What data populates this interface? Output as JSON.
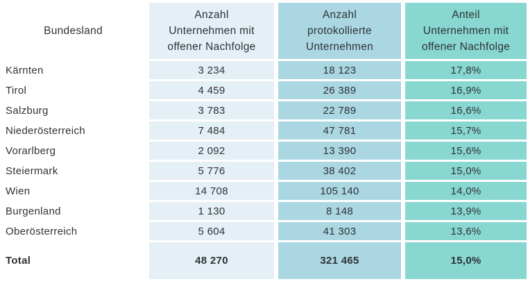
{
  "colors": {
    "light_blue": "#e4eff6",
    "medium_blue": "#abd7e3",
    "teal": "#88d7d0",
    "text": "#2e3236"
  },
  "table": {
    "header": {
      "col0": "Bundesland",
      "col1": {
        "lines": [
          "Anzahl",
          "Unternehmen mit",
          "offener Nachfolge"
        ]
      },
      "col2": {
        "lines": [
          "Anzahl",
          "protokollierte",
          "Unternehmen"
        ]
      },
      "col3": {
        "lines": [
          "Anteil",
          "Unternehmen mit",
          "offener Nachfolge"
        ]
      }
    },
    "rows": [
      {
        "bundesland": "Kärnten",
        "offene_nachfolge": "3 234",
        "protokollierte": "18 123",
        "anteil": "17,8%"
      },
      {
        "bundesland": "Tirol",
        "offene_nachfolge": "4 459",
        "protokollierte": "26 389",
        "anteil": "16,9%"
      },
      {
        "bundesland": "Salzburg",
        "offene_nachfolge": "3 783",
        "protokollierte": "22 789",
        "anteil": "16,6%"
      },
      {
        "bundesland": "Niederösterreich",
        "offene_nachfolge": "7 484",
        "protokollierte": "47 781",
        "anteil": "15,7%"
      },
      {
        "bundesland": "Vorarlberg",
        "offene_nachfolge": "2 092",
        "protokollierte": "13 390",
        "anteil": "15,6%"
      },
      {
        "bundesland": "Steiermark",
        "offene_nachfolge": "5 776",
        "protokollierte": "38 402",
        "anteil": "15,0%"
      },
      {
        "bundesland": "Wien",
        "offene_nachfolge": "14 708",
        "protokollierte": "105 140",
        "anteil": "14,0%"
      },
      {
        "bundesland": "Burgenland",
        "offene_nachfolge": "1 130",
        "protokollierte": "8 148",
        "anteil": "13,9%"
      },
      {
        "bundesland": "Oberösterreich",
        "offene_nachfolge": "5 604",
        "protokollierte": "41 303",
        "anteil": "13,6%"
      }
    ],
    "total": {
      "label": "Total",
      "offene_nachfolge": "48 270",
      "protokollierte": "321 465",
      "anteil": "15,0%"
    }
  },
  "chart_data": {
    "type": "table",
    "title": "",
    "columns": [
      "Bundesland",
      "Anzahl Unternehmen mit offener Nachfolge",
      "Anzahl protokollierte Unternehmen",
      "Anteil Unternehmen mit offener Nachfolge"
    ],
    "rows": [
      [
        "Kärnten",
        3234,
        18123,
        "17,8%"
      ],
      [
        "Tirol",
        4459,
        26389,
        "16,9%"
      ],
      [
        "Salzburg",
        3783,
        22789,
        "16,6%"
      ],
      [
        "Niederösterreich",
        7484,
        47781,
        "15,7%"
      ],
      [
        "Vorarlberg",
        2092,
        13390,
        "15,6%"
      ],
      [
        "Steiermark",
        5776,
        38402,
        "15,0%"
      ],
      [
        "Wien",
        14708,
        105140,
        "14,0%"
      ],
      [
        "Burgenland",
        1130,
        8148,
        "13,9%"
      ],
      [
        "Oberösterreich",
        5604,
        41303,
        "13,6%"
      ]
    ],
    "total_row": [
      "Total",
      48270,
      321465,
      "15,0%"
    ]
  }
}
